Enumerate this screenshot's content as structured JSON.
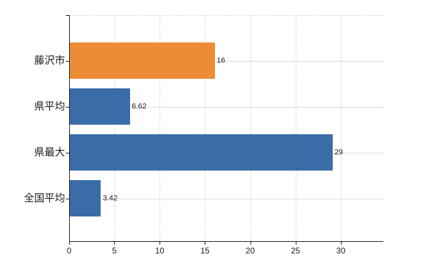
{
  "chart_data": {
    "type": "bar",
    "orientation": "horizontal",
    "categories": [
      "藤沢市",
      "県平均",
      "県最大",
      "全国平均"
    ],
    "values": [
      16,
      6.62,
      29,
      3.42
    ],
    "value_labels": [
      "16",
      "6.62",
      "29",
      "3.42"
    ],
    "bar_colors": [
      "#EC8C34",
      "#3A6CA8",
      "#3A6CA8",
      "#3A6CA8"
    ],
    "x_ticks": [
      0,
      5,
      10,
      15,
      20,
      25,
      30
    ],
    "x_tick_labels": [
      "0",
      "5",
      "10",
      "15",
      "20",
      "25",
      "30"
    ],
    "xlim": [
      0,
      34.7
    ],
    "grid": true,
    "legend": false,
    "colors": {
      "grid": "#D9D9D9",
      "axis": "#1A1A1A",
      "text": "#1A1A1A",
      "background": "#FFFFFF"
    }
  }
}
